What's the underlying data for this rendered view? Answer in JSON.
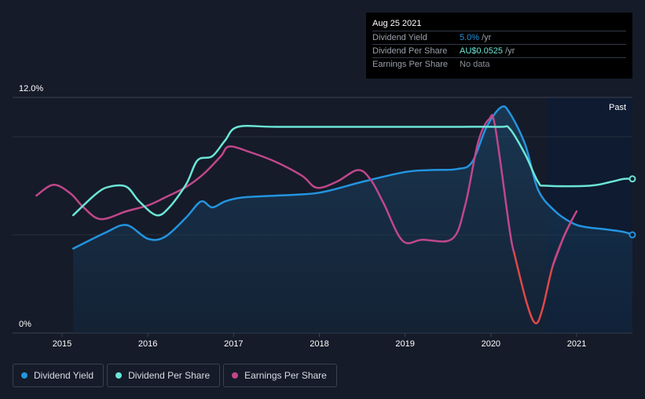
{
  "tooltip": {
    "date": "Aug 25 2021",
    "rows": [
      {
        "label": "Dividend Yield",
        "value": "5.0%",
        "unit": "/yr",
        "color": "#2394df"
      },
      {
        "label": "Dividend Per Share",
        "value": "AU$0.0525",
        "unit": "/yr",
        "color": "#6ce5d6"
      },
      {
        "label": "Earnings Per Share",
        "value": "No data",
        "unit": "",
        "color": "#8a8f99"
      }
    ]
  },
  "past_label": "Past",
  "legend": [
    {
      "label": "Dividend Yield",
      "color": "#2394df"
    },
    {
      "label": "Dividend Per Share",
      "color": "#6ce5d6"
    },
    {
      "label": "Earnings Per Share",
      "color": "#c0478a"
    }
  ],
  "chart_data": {
    "type": "line",
    "y_tick_labels": [
      "12.0%",
      "0%"
    ],
    "ylim": [
      0,
      12
    ],
    "xlim": [
      2014.7,
      2021.65
    ],
    "x_tick_labels": [
      "2015",
      "2016",
      "2017",
      "2018",
      "2019",
      "2020",
      "2021"
    ],
    "x_ticks": [
      2015,
      2016,
      2017,
      2018,
      2019,
      2020,
      2021
    ],
    "past_region_start": 2020.65,
    "series": [
      {
        "name": "Dividend Yield",
        "color": "#2394df",
        "filled": true,
        "points": [
          [
            2015.13,
            4.3
          ],
          [
            2015.5,
            5.1
          ],
          [
            2015.75,
            5.5
          ],
          [
            2016.0,
            4.8
          ],
          [
            2016.2,
            4.9
          ],
          [
            2016.45,
            5.9
          ],
          [
            2016.62,
            6.7
          ],
          [
            2016.75,
            6.4
          ],
          [
            2016.9,
            6.7
          ],
          [
            2017.1,
            6.9
          ],
          [
            2017.5,
            7.0
          ],
          [
            2018.0,
            7.15
          ],
          [
            2018.5,
            7.7
          ],
          [
            2019.0,
            8.2
          ],
          [
            2019.3,
            8.3
          ],
          [
            2019.6,
            8.35
          ],
          [
            2019.78,
            8.7
          ],
          [
            2019.95,
            10.5
          ],
          [
            2020.12,
            11.5
          ],
          [
            2020.22,
            11.2
          ],
          [
            2020.4,
            9.6
          ],
          [
            2020.55,
            7.3
          ],
          [
            2020.75,
            6.2
          ],
          [
            2020.95,
            5.6
          ],
          [
            2021.1,
            5.4
          ],
          [
            2021.3,
            5.3
          ],
          [
            2021.55,
            5.15
          ],
          [
            2021.65,
            5.0
          ]
        ]
      },
      {
        "name": "Dividend Per Share",
        "color": "#6ce5d6",
        "filled": false,
        "points": [
          [
            2015.13,
            6.0
          ],
          [
            2015.4,
            7.1
          ],
          [
            2015.55,
            7.45
          ],
          [
            2015.75,
            7.45
          ],
          [
            2015.9,
            6.7
          ],
          [
            2016.1,
            6.0
          ],
          [
            2016.25,
            6.4
          ],
          [
            2016.45,
            7.6
          ],
          [
            2016.58,
            8.8
          ],
          [
            2016.75,
            9.0
          ],
          [
            2016.9,
            9.8
          ],
          [
            2017.05,
            10.5
          ],
          [
            2017.5,
            10.5
          ],
          [
            2018.5,
            10.5
          ],
          [
            2019.5,
            10.5
          ],
          [
            2020.1,
            10.5
          ],
          [
            2020.22,
            10.4
          ],
          [
            2020.4,
            9.1
          ],
          [
            2020.55,
            7.7
          ],
          [
            2020.65,
            7.5
          ],
          [
            2021.15,
            7.5
          ],
          [
            2021.4,
            7.7
          ],
          [
            2021.55,
            7.85
          ],
          [
            2021.65,
            7.85
          ]
        ]
      },
      {
        "name": "Earnings Per Share",
        "color": "#c0478a",
        "filled": false,
        "points": [
          [
            2014.7,
            7.0
          ],
          [
            2014.9,
            7.55
          ],
          [
            2015.1,
            7.1
          ],
          [
            2015.25,
            6.4
          ],
          [
            2015.45,
            5.8
          ],
          [
            2015.75,
            6.2
          ],
          [
            2016.0,
            6.5
          ],
          [
            2016.2,
            6.9
          ],
          [
            2016.45,
            7.45
          ],
          [
            2016.65,
            8.1
          ],
          [
            2016.85,
            9.0
          ],
          [
            2016.95,
            9.5
          ],
          [
            2017.2,
            9.2
          ],
          [
            2017.5,
            8.7
          ],
          [
            2017.8,
            8.0
          ],
          [
            2017.97,
            7.4
          ],
          [
            2018.2,
            7.7
          ],
          [
            2018.45,
            8.3
          ],
          [
            2018.6,
            7.8
          ],
          [
            2018.75,
            6.6
          ],
          [
            2018.97,
            4.7
          ],
          [
            2019.2,
            4.75
          ],
          [
            2019.55,
            4.8
          ],
          [
            2019.7,
            6.5
          ],
          [
            2019.85,
            9.7
          ],
          [
            2019.98,
            10.9
          ],
          [
            2020.05,
            10.5
          ],
          [
            2020.22,
            5.2
          ],
          [
            2020.27,
            4.1
          ]
        ]
      },
      {
        "name": "Earnings Per Share (decline)",
        "color": "#e04848",
        "filled": false,
        "points": [
          [
            2020.27,
            4.1
          ],
          [
            2020.42,
            1.5
          ],
          [
            2020.52,
            0.5
          ],
          [
            2020.6,
            1.2
          ],
          [
            2020.72,
            3.4
          ],
          [
            2020.85,
            4.9
          ],
          [
            2020.95,
            5.8
          ]
        ]
      },
      {
        "name": "Earnings Per Share (recovery)",
        "color": "#c0478a",
        "filled": false,
        "points": [
          [
            2020.72,
            3.4
          ],
          [
            2020.85,
            4.9
          ],
          [
            2020.95,
            5.8
          ],
          [
            2021.0,
            6.2
          ]
        ]
      }
    ]
  }
}
